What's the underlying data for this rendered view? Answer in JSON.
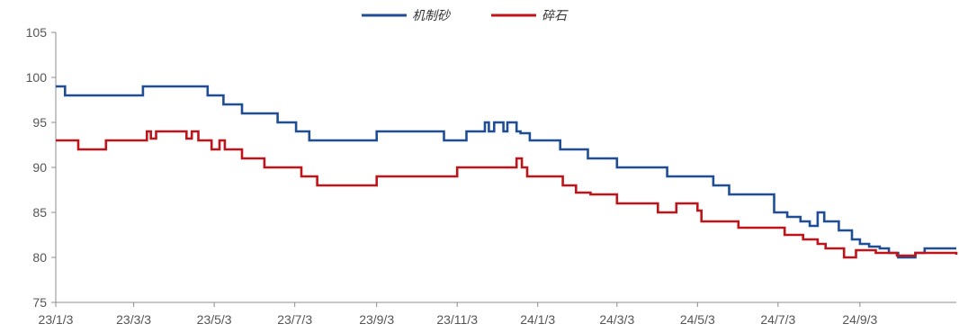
{
  "chart_data": {
    "type": "line",
    "title": "",
    "xlabel": "",
    "ylabel": "",
    "ylim": [
      75,
      105
    ],
    "yticks": [
      75,
      80,
      85,
      90,
      95,
      100,
      105
    ],
    "xlim": [
      "2023-01-03",
      "2024-11-15"
    ],
    "xticks": [
      {
        "date": "2023-01-03",
        "label": "23/1/3"
      },
      {
        "date": "2023-03-03",
        "label": "23/3/3"
      },
      {
        "date": "2023-05-03",
        "label": "23/5/3"
      },
      {
        "date": "2023-07-03",
        "label": "23/7/3"
      },
      {
        "date": "2023-09-03",
        "label": "23/9/3"
      },
      {
        "date": "2023-11-03",
        "label": "23/11/3"
      },
      {
        "date": "2024-01-03",
        "label": "24/1/3"
      },
      {
        "date": "2024-03-03",
        "label": "24/3/3"
      },
      {
        "date": "2024-05-03",
        "label": "24/5/3"
      },
      {
        "date": "2024-07-03",
        "label": "24/7/3"
      },
      {
        "date": "2024-09-03",
        "label": "24/9/3"
      }
    ],
    "grid": false,
    "legend": "top-center",
    "series": [
      {
        "name": "机制砂",
        "color": "#1f4e96",
        "points": [
          [
            "2023-01-03",
            99
          ],
          [
            "2023-01-10",
            98
          ],
          [
            "2023-03-10",
            99
          ],
          [
            "2023-04-28",
            98
          ],
          [
            "2023-05-10",
            97
          ],
          [
            "2023-05-24",
            96
          ],
          [
            "2023-06-20",
            95
          ],
          [
            "2023-07-04",
            94
          ],
          [
            "2023-07-14",
            93
          ],
          [
            "2023-09-03",
            94
          ],
          [
            "2023-10-24",
            93
          ],
          [
            "2023-11-10",
            94
          ],
          [
            "2023-11-24",
            95
          ],
          [
            "2023-11-27",
            94
          ],
          [
            "2023-12-01",
            95
          ],
          [
            "2023-12-08",
            94
          ],
          [
            "2023-12-11",
            95
          ],
          [
            "2023-12-18",
            94
          ],
          [
            "2023-12-21",
            93.8
          ],
          [
            "2023-12-28",
            93
          ],
          [
            "2024-01-20",
            92
          ],
          [
            "2024-02-10",
            91
          ],
          [
            "2024-03-03",
            90
          ],
          [
            "2024-04-10",
            89
          ],
          [
            "2024-05-15",
            88
          ],
          [
            "2024-05-27",
            87
          ],
          [
            "2024-06-30",
            85
          ],
          [
            "2024-07-10",
            84.5
          ],
          [
            "2024-07-20",
            84
          ],
          [
            "2024-07-27",
            83.5
          ],
          [
            "2024-08-02",
            85
          ],
          [
            "2024-08-07",
            84
          ],
          [
            "2024-08-18",
            83
          ],
          [
            "2024-08-28",
            82
          ],
          [
            "2024-09-03",
            81.5
          ],
          [
            "2024-09-10",
            81.2
          ],
          [
            "2024-09-18",
            81
          ],
          [
            "2024-09-25",
            80.5
          ],
          [
            "2024-10-02",
            80
          ],
          [
            "2024-10-15",
            80.5
          ],
          [
            "2024-10-22",
            81
          ],
          [
            "2024-11-15",
            81
          ]
        ]
      },
      {
        "name": "碎石",
        "color": "#c0141b",
        "points": [
          [
            "2023-01-03",
            93
          ],
          [
            "2023-01-20",
            92
          ],
          [
            "2023-02-10",
            93
          ],
          [
            "2023-03-13",
            94
          ],
          [
            "2023-03-16",
            93.2
          ],
          [
            "2023-03-20",
            94
          ],
          [
            "2023-04-12",
            93.2
          ],
          [
            "2023-04-16",
            94
          ],
          [
            "2023-04-21",
            93
          ],
          [
            "2023-05-01",
            92
          ],
          [
            "2023-05-07",
            93
          ],
          [
            "2023-05-11",
            92
          ],
          [
            "2023-05-24",
            91
          ],
          [
            "2023-06-10",
            90
          ],
          [
            "2023-07-08",
            89
          ],
          [
            "2023-07-20",
            88
          ],
          [
            "2023-09-03",
            89
          ],
          [
            "2023-11-03",
            90
          ],
          [
            "2023-12-18",
            91
          ],
          [
            "2023-12-22",
            90
          ],
          [
            "2023-12-26",
            89
          ],
          [
            "2024-01-22",
            88
          ],
          [
            "2024-02-01",
            87.2
          ],
          [
            "2024-02-12",
            87
          ],
          [
            "2024-03-03",
            86
          ],
          [
            "2024-04-03",
            85
          ],
          [
            "2024-04-17",
            86
          ],
          [
            "2024-05-03",
            85.2
          ],
          [
            "2024-05-06",
            84
          ],
          [
            "2024-05-21",
            84
          ],
          [
            "2024-06-03",
            83.3
          ],
          [
            "2024-06-28",
            83.3
          ],
          [
            "2024-07-08",
            82.5
          ],
          [
            "2024-07-22",
            82
          ],
          [
            "2024-08-02",
            81.5
          ],
          [
            "2024-08-08",
            81
          ],
          [
            "2024-08-22",
            80
          ],
          [
            "2024-08-31",
            80.8
          ],
          [
            "2024-09-15",
            80.5
          ],
          [
            "2024-10-01",
            80.2
          ],
          [
            "2024-10-15",
            80.5
          ],
          [
            "2024-11-15",
            80.3
          ]
        ]
      }
    ]
  }
}
